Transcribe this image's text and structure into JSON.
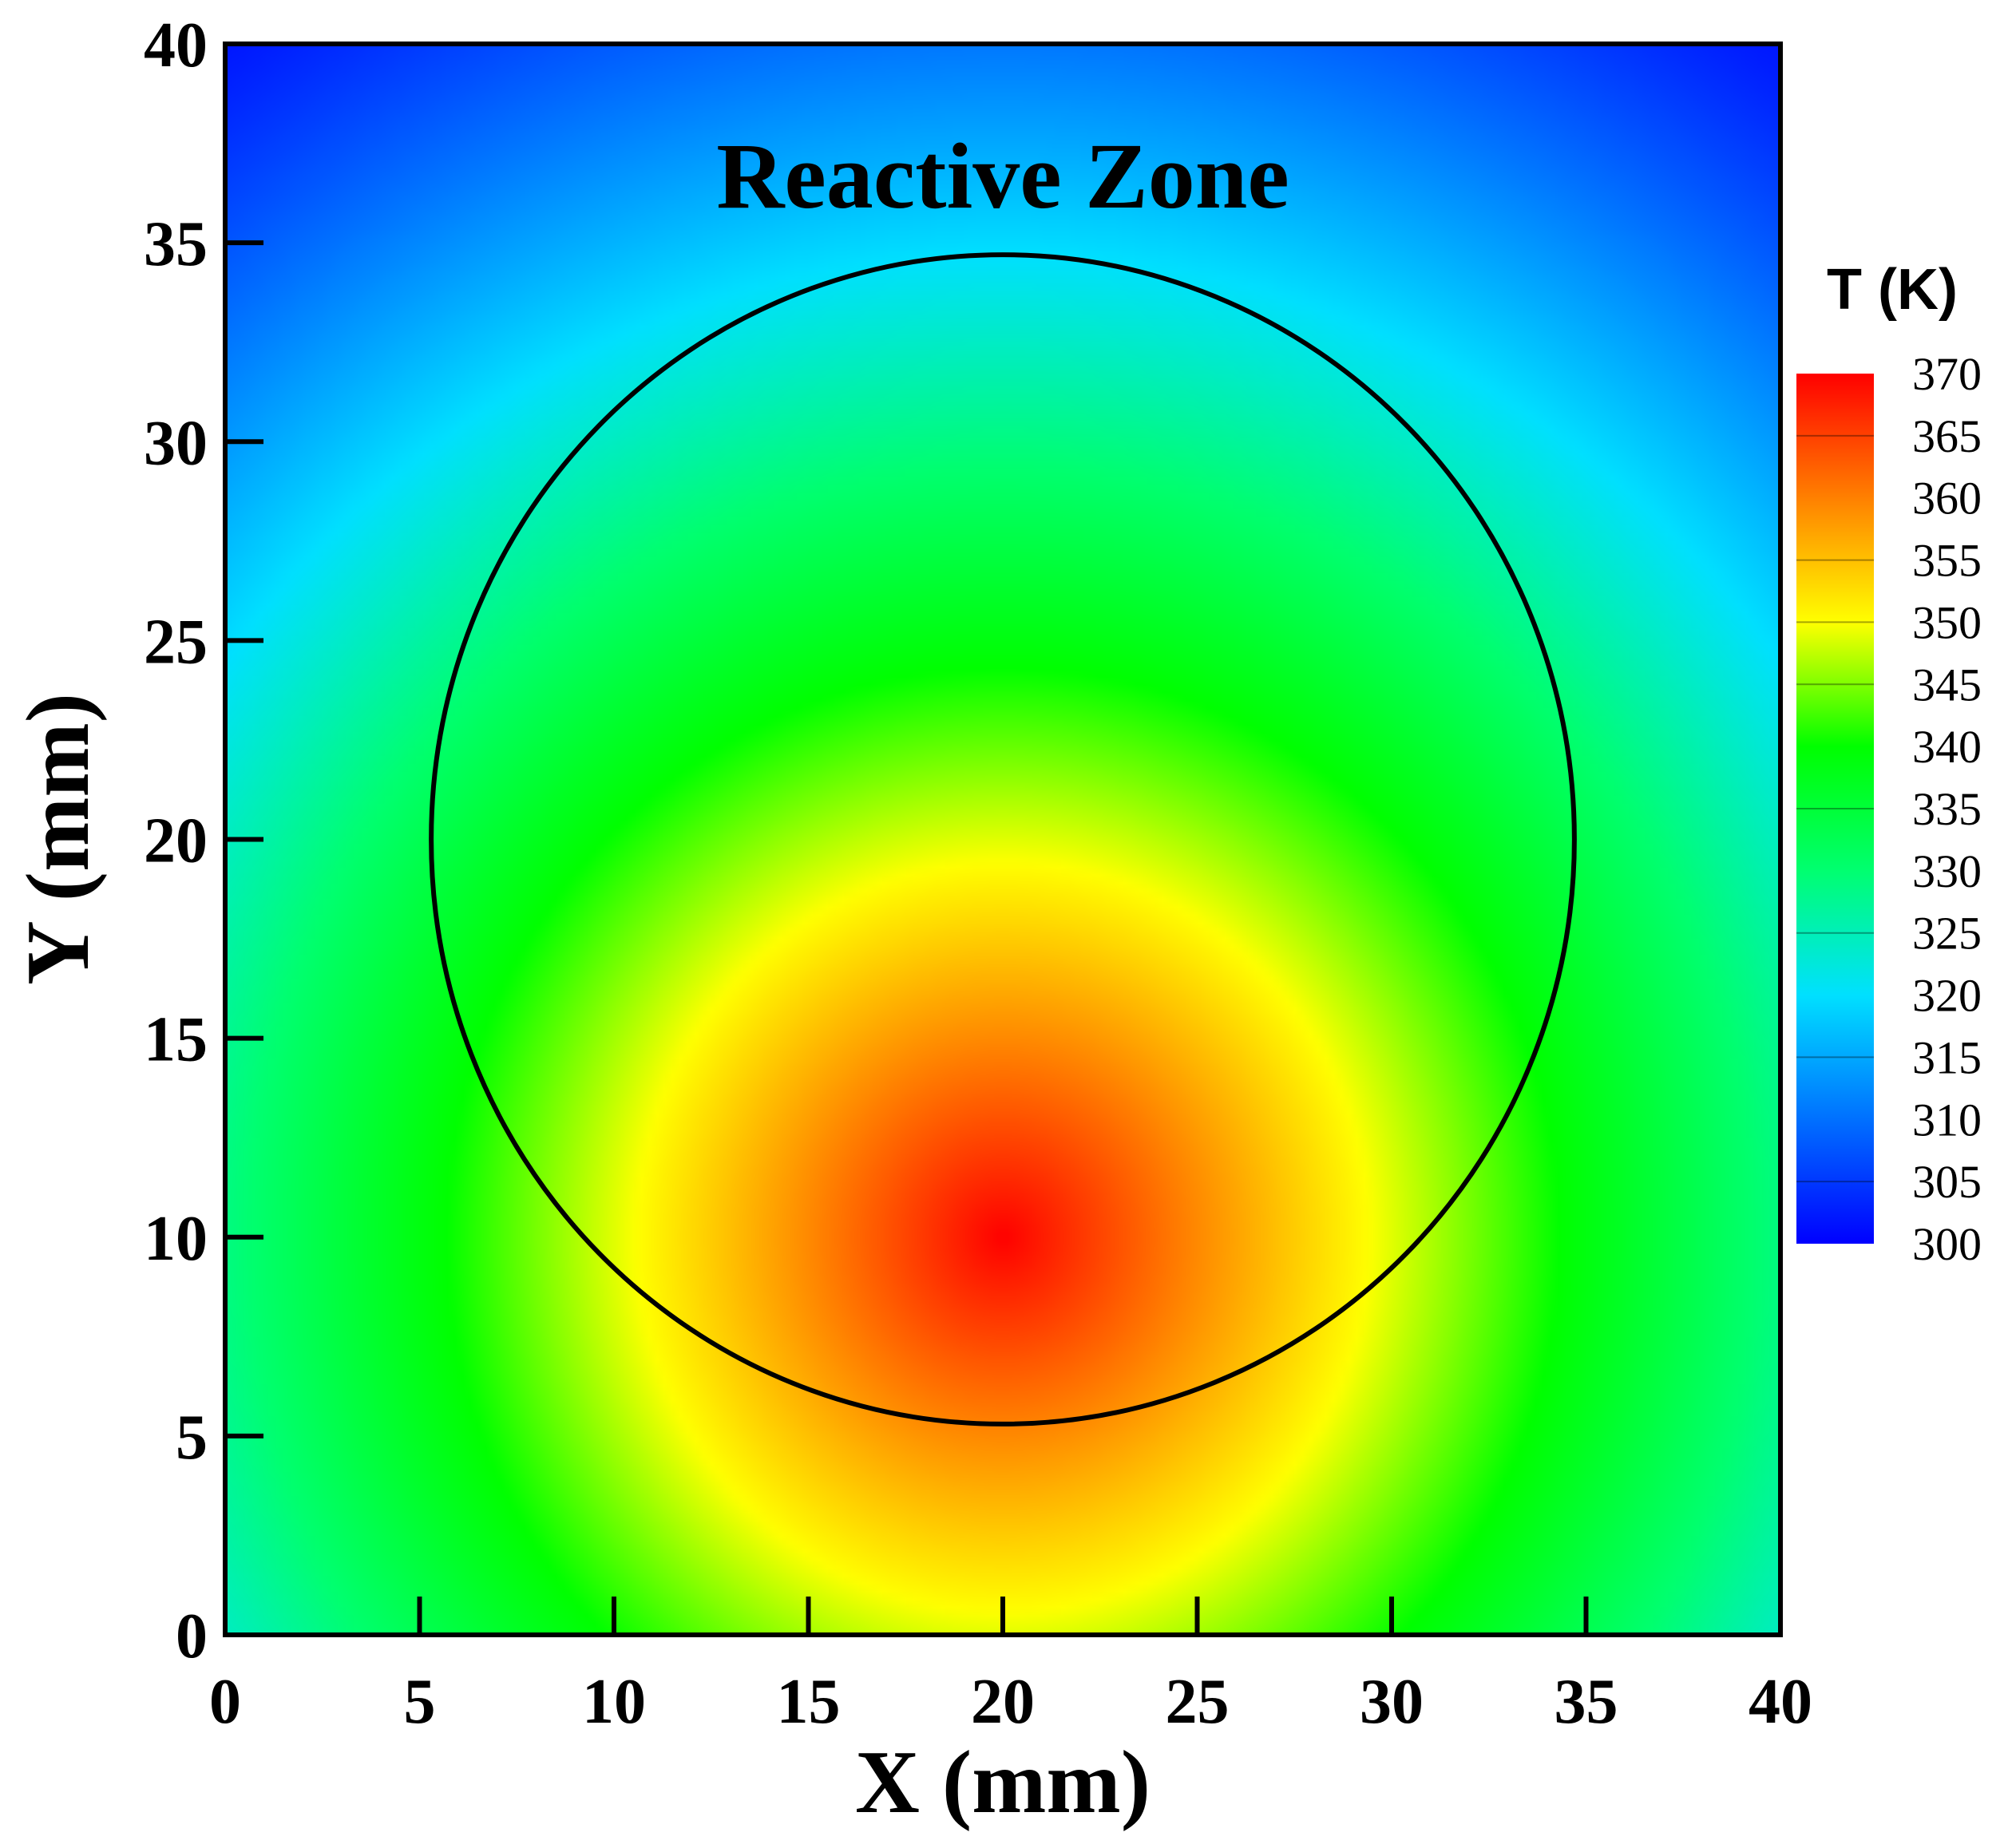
{
  "chart_data": {
    "type": "heatmap",
    "title": "",
    "xlabel": "X (mm)",
    "ylabel": "Y (mm)",
    "xlim": [
      0,
      40
    ],
    "ylim": [
      0,
      40
    ],
    "xticks": [
      "0",
      "5",
      "10",
      "15",
      "20",
      "25",
      "30",
      "35",
      "40"
    ],
    "yticks": [
      "0",
      "5",
      "10",
      "15",
      "20",
      "25",
      "30",
      "35",
      "40"
    ],
    "annotation": "Reactive Zone",
    "circle": {
      "center": [
        20,
        20
      ],
      "radius": 14.7
    },
    "field": {
      "quantity": "T",
      "unit": "K",
      "hot_spot_center": [
        20,
        10
      ],
      "max": 370,
      "min": 300,
      "top_edge_value": 302,
      "bottom_edge_value": 340
    },
    "colorbar": {
      "title": "T (K)",
      "min": 300,
      "max": 370,
      "levels": [
        "370",
        "365",
        "360",
        "355",
        "350",
        "345",
        "340",
        "335",
        "330",
        "325",
        "320",
        "315",
        "310",
        "305",
        "300"
      ],
      "colors": [
        "#0000ff",
        "#0070ff",
        "#00e0ff",
        "#00ff70",
        "#00ff00",
        "#ffff00",
        "#ff8000",
        "#ff0000"
      ]
    },
    "grid": false,
    "legend": "right"
  }
}
